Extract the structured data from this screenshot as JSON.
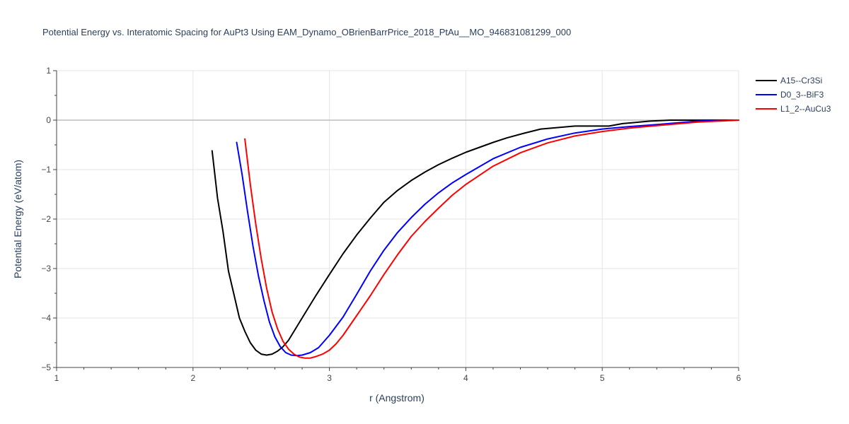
{
  "chart_data": {
    "type": "line",
    "title": "Potential Energy vs. Interatomic Spacing for AuPt3 Using EAM_Dynamo_OBrienBarrPrice_2018_PtAu__MO_946831081299_000",
    "xlabel": "r (Angstrom)",
    "ylabel": "Potential Energy (eV/atom)",
    "xlim": [
      1,
      6
    ],
    "ylim": [
      -5,
      1
    ],
    "xticks": [
      1,
      2,
      3,
      4,
      5,
      6
    ],
    "yticks": [
      1,
      0,
      -1,
      -2,
      -3,
      -4,
      -5
    ],
    "xtick_labels": [
      "1",
      "2",
      "3",
      "4",
      "5",
      "6"
    ],
    "ytick_labels": [
      "1",
      "0",
      "−1",
      "−2",
      "−3",
      "−4",
      "−5"
    ],
    "grid": true,
    "legend_position": "top-right",
    "series": [
      {
        "name": "A15--Cr3Si",
        "color": "#000000",
        "x": [
          2.14,
          2.18,
          2.22,
          2.26,
          2.3,
          2.34,
          2.38,
          2.42,
          2.46,
          2.5,
          2.54,
          2.58,
          2.62,
          2.66,
          2.7,
          2.74,
          2.8,
          2.9,
          3.0,
          3.1,
          3.2,
          3.3,
          3.4,
          3.5,
          3.6,
          3.7,
          3.8,
          3.9,
          4.0,
          4.2,
          4.3,
          4.42,
          4.55,
          4.8,
          5.05,
          5.15,
          5.35,
          5.5,
          5.75,
          6.0
        ],
        "y": [
          -0.62,
          -1.58,
          -2.25,
          -3.05,
          -3.52,
          -4.0,
          -4.27,
          -4.5,
          -4.65,
          -4.73,
          -4.75,
          -4.73,
          -4.67,
          -4.58,
          -4.45,
          -4.27,
          -4.0,
          -3.55,
          -3.12,
          -2.7,
          -2.32,
          -1.98,
          -1.66,
          -1.42,
          -1.22,
          -1.05,
          -0.9,
          -0.77,
          -0.65,
          -0.45,
          -0.36,
          -0.27,
          -0.18,
          -0.12,
          -0.12,
          -0.07,
          -0.02,
          0.0,
          0.0,
          0.0
        ]
      },
      {
        "name": "D0_3--BiF3",
        "color": "#0000ff",
        "x": [
          2.32,
          2.36,
          2.4,
          2.44,
          2.48,
          2.52,
          2.56,
          2.6,
          2.64,
          2.68,
          2.72,
          2.76,
          2.8,
          2.86,
          2.92,
          3.0,
          3.1,
          3.2,
          3.3,
          3.4,
          3.5,
          3.6,
          3.7,
          3.8,
          3.9,
          4.0,
          4.2,
          4.4,
          4.6,
          4.8,
          5.0,
          5.2,
          5.4,
          5.7,
          6.0
        ],
        "y": [
          -0.45,
          -1.1,
          -1.85,
          -2.55,
          -3.15,
          -3.65,
          -4.08,
          -4.38,
          -4.58,
          -4.7,
          -4.75,
          -4.76,
          -4.75,
          -4.7,
          -4.6,
          -4.35,
          -3.98,
          -3.52,
          -3.05,
          -2.63,
          -2.27,
          -1.97,
          -1.7,
          -1.47,
          -1.27,
          -1.1,
          -0.78,
          -0.55,
          -0.38,
          -0.26,
          -0.18,
          -0.13,
          -0.09,
          -0.02,
          0.0
        ]
      },
      {
        "name": "L1_2--AuCu3",
        "color": "#ff0000",
        "x": [
          2.38,
          2.42,
          2.46,
          2.5,
          2.54,
          2.58,
          2.62,
          2.66,
          2.7,
          2.74,
          2.78,
          2.82,
          2.86,
          2.9,
          2.95,
          3.0,
          3.05,
          3.1,
          3.2,
          3.3,
          3.4,
          3.5,
          3.6,
          3.7,
          3.8,
          3.9,
          4.0,
          4.2,
          4.4,
          4.6,
          4.8,
          5.0,
          5.2,
          5.4,
          5.7,
          6.0
        ],
        "y": [
          -0.38,
          -1.3,
          -2.1,
          -2.8,
          -3.4,
          -3.88,
          -4.22,
          -4.47,
          -4.63,
          -4.73,
          -4.79,
          -4.81,
          -4.81,
          -4.78,
          -4.73,
          -4.65,
          -4.52,
          -4.35,
          -3.95,
          -3.55,
          -3.12,
          -2.72,
          -2.35,
          -2.05,
          -1.78,
          -1.52,
          -1.3,
          -0.93,
          -0.66,
          -0.46,
          -0.32,
          -0.23,
          -0.16,
          -0.11,
          -0.04,
          0.0
        ]
      }
    ]
  }
}
